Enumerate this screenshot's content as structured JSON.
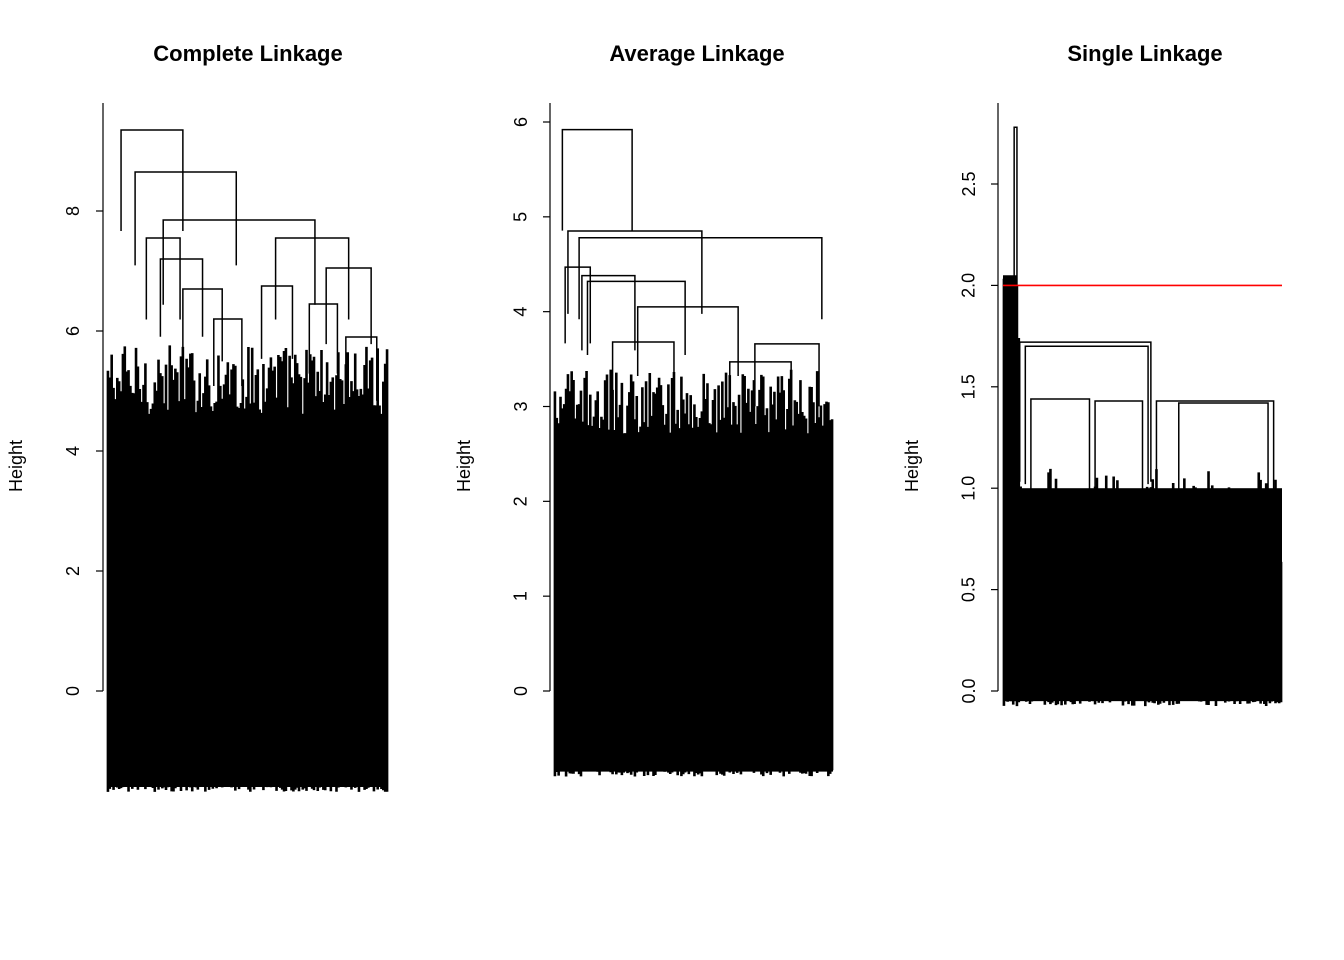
{
  "chart_data": [
    {
      "type": "dendrogram",
      "title": "Complete Linkage",
      "ylabel": "Height",
      "yticks": [
        0,
        2,
        4,
        6,
        8
      ],
      "ylim": [
        -1.8,
        9.7
      ],
      "top_merges": [
        {
          "height": 9.35,
          "left": 0.05,
          "right": 0.27
        },
        {
          "height": 8.65,
          "left": 0.1,
          "right": 0.46
        },
        {
          "height": 7.85,
          "left": 0.2,
          "right": 0.74
        },
        {
          "height": 7.55,
          "left": 0.14,
          "right": 0.26
        },
        {
          "height": 7.55,
          "left": 0.6,
          "right": 0.86
        },
        {
          "height": 7.2,
          "left": 0.19,
          "right": 0.34
        },
        {
          "height": 7.05,
          "left": 0.78,
          "right": 0.94
        },
        {
          "height": 6.75,
          "left": 0.55,
          "right": 0.66
        },
        {
          "height": 6.7,
          "left": 0.27,
          "right": 0.41
        },
        {
          "height": 6.45,
          "left": 0.72,
          "right": 0.82
        },
        {
          "height": 6.2,
          "left": 0.38,
          "right": 0.48
        },
        {
          "height": 5.9,
          "left": 0.85,
          "right": 0.96
        }
      ],
      "leaf_count": 150,
      "leaf_floor": -1.6
    },
    {
      "type": "dendrogram",
      "title": "Average Linkage",
      "ylabel": "Height",
      "yticks": [
        0,
        1,
        2,
        3,
        4,
        5,
        6
      ],
      "ylim": [
        -0.95,
        6.2
      ],
      "top_merges": [
        {
          "height": 5.92,
          "left": 0.03,
          "right": 0.28
        },
        {
          "height": 4.85,
          "left": 0.05,
          "right": 0.53
        },
        {
          "height": 4.78,
          "left": 0.09,
          "right": 0.96
        },
        {
          "height": 4.47,
          "left": 0.04,
          "right": 0.13
        },
        {
          "height": 4.38,
          "left": 0.1,
          "right": 0.29
        },
        {
          "height": 4.32,
          "left": 0.12,
          "right": 0.47
        },
        {
          "height": 4.05,
          "left": 0.3,
          "right": 0.66
        },
        {
          "height": 3.68,
          "left": 0.21,
          "right": 0.43
        },
        {
          "height": 3.66,
          "left": 0.72,
          "right": 0.95
        },
        {
          "height": 3.47,
          "left": 0.63,
          "right": 0.85
        }
      ],
      "leaf_count": 150,
      "leaf_floor": -0.85
    },
    {
      "type": "dendrogram",
      "title": "Single Linkage",
      "ylabel": "Height",
      "yticks": [
        "0.0",
        "0.5",
        "1.0",
        "1.5",
        "2.0",
        "2.5"
      ],
      "ylim": [
        -0.1,
        2.9
      ],
      "cut_height": 2.0,
      "cut_color": "#ff0000",
      "top_merges": [
        {
          "height": 2.78,
          "left": 0.04,
          "right": 0.05
        },
        {
          "height": 1.72,
          "left": 0.06,
          "right": 0.53
        },
        {
          "height": 1.7,
          "left": 0.08,
          "right": 0.52
        },
        {
          "height": 1.44,
          "left": 0.1,
          "right": 0.31
        },
        {
          "height": 1.43,
          "left": 0.33,
          "right": 0.5
        },
        {
          "height": 1.43,
          "left": 0.55,
          "right": 0.97
        },
        {
          "height": 1.42,
          "left": 0.63,
          "right": 0.95
        }
      ],
      "leaf_count": 150,
      "leaf_floor": -0.05
    }
  ]
}
